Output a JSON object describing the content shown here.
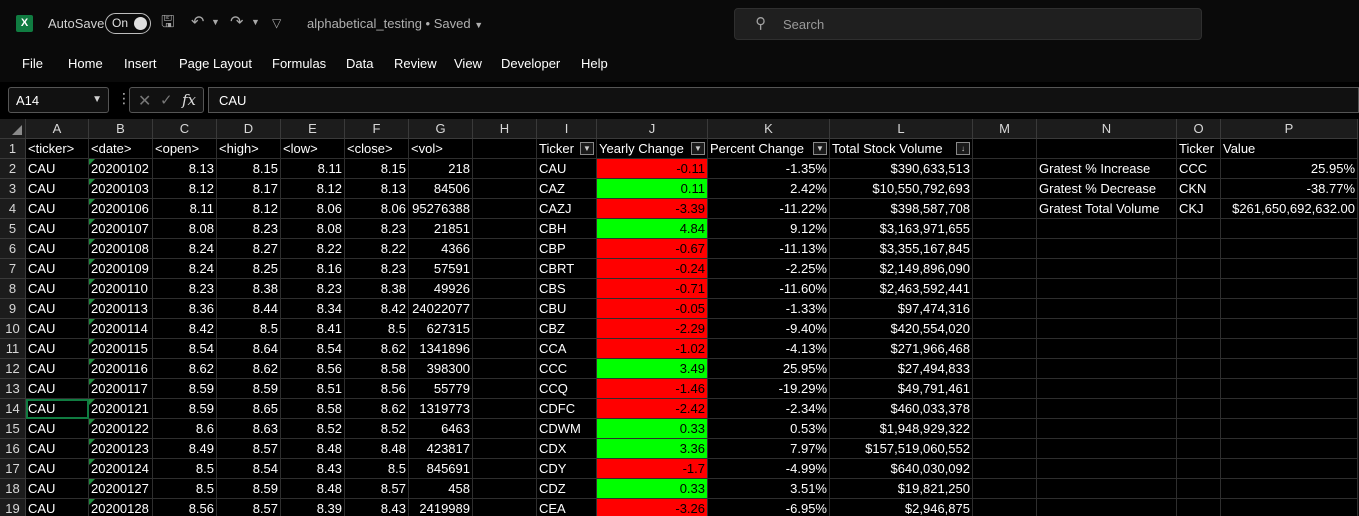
{
  "app": {
    "autosave_label": "AutoSave",
    "autosave_state": "On",
    "filename": "alphabetical_testing",
    "save_status": "• Saved",
    "search_placeholder": "Search"
  },
  "menu": [
    "File",
    "Home",
    "Insert",
    "Page Layout",
    "Formulas",
    "Data",
    "Review",
    "View",
    "Developer",
    "Help"
  ],
  "formula_bar": {
    "name_box": "A14",
    "fx_label": "fx",
    "formula": "CAU"
  },
  "columns": [
    "A",
    "B",
    "C",
    "D",
    "E",
    "F",
    "G",
    "H",
    "I",
    "J",
    "K",
    "L",
    "M",
    "N",
    "O",
    "P"
  ],
  "rows": [
    [
      "<ticker>",
      "<date>",
      "<open>",
      "<high>",
      "<low>",
      "<close>",
      "<vol>",
      "",
      "Ticker",
      "Yearly Change",
      "Percent Change",
      "Total Stock Volume",
      "",
      "",
      "Ticker",
      "Value"
    ],
    [
      "CAU",
      "20200102",
      "8.13",
      "8.15",
      "8.11",
      "8.15",
      "218",
      "",
      "CAU",
      "-0.11",
      "-1.35%",
      "$390,633,513",
      "",
      "Gratest % Increase",
      "CCC",
      "25.95%"
    ],
    [
      "CAU",
      "20200103",
      "8.12",
      "8.17",
      "8.12",
      "8.13",
      "84506",
      "",
      "CAZ",
      "0.11",
      "2.42%",
      "$10,550,792,693",
      "",
      "Gratest % Decrease",
      "CKN",
      "-38.77%"
    ],
    [
      "CAU",
      "20200106",
      "8.11",
      "8.12",
      "8.06",
      "8.06",
      "95276388",
      "",
      "CAZJ",
      "-3.39",
      "-11.22%",
      "$398,587,708",
      "",
      "Gratest Total Volume",
      "CKJ",
      "$261,650,692,632.00"
    ],
    [
      "CAU",
      "20200107",
      "8.08",
      "8.23",
      "8.08",
      "8.23",
      "21851",
      "",
      "CBH",
      "4.84",
      "9.12%",
      "$3,163,971,655",
      "",
      "",
      "",
      ""
    ],
    [
      "CAU",
      "20200108",
      "8.24",
      "8.27",
      "8.22",
      "8.22",
      "4366",
      "",
      "CBP",
      "-0.67",
      "-11.13%",
      "$3,355,167,845",
      "",
      "",
      "",
      ""
    ],
    [
      "CAU",
      "20200109",
      "8.24",
      "8.25",
      "8.16",
      "8.23",
      "57591",
      "",
      "CBRT",
      "-0.24",
      "-2.25%",
      "$2,149,896,090",
      "",
      "",
      "",
      ""
    ],
    [
      "CAU",
      "20200110",
      "8.23",
      "8.38",
      "8.23",
      "8.38",
      "49926",
      "",
      "CBS",
      "-0.71",
      "-11.60%",
      "$2,463,592,441",
      "",
      "",
      "",
      ""
    ],
    [
      "CAU",
      "20200113",
      "8.36",
      "8.44",
      "8.34",
      "8.42",
      "24022077",
      "",
      "CBU",
      "-0.05",
      "-1.33%",
      "$97,474,316",
      "",
      "",
      "",
      ""
    ],
    [
      "CAU",
      "20200114",
      "8.42",
      "8.5",
      "8.41",
      "8.5",
      "627315",
      "",
      "CBZ",
      "-2.29",
      "-9.40%",
      "$420,554,020",
      "",
      "",
      "",
      ""
    ],
    [
      "CAU",
      "20200115",
      "8.54",
      "8.64",
      "8.54",
      "8.62",
      "1341896",
      "",
      "CCA",
      "-1.02",
      "-4.13%",
      "$271,966,468",
      "",
      "",
      "",
      ""
    ],
    [
      "CAU",
      "20200116",
      "8.62",
      "8.62",
      "8.56",
      "8.58",
      "398300",
      "",
      "CCC",
      "3.49",
      "25.95%",
      "$27,494,833",
      "",
      "",
      "",
      ""
    ],
    [
      "CAU",
      "20200117",
      "8.59",
      "8.59",
      "8.51",
      "8.56",
      "55779",
      "",
      "CCQ",
      "-1.46",
      "-19.29%",
      "$49,791,461",
      "",
      "",
      "",
      ""
    ],
    [
      "CAU",
      "20200121",
      "8.59",
      "8.65",
      "8.58",
      "8.62",
      "1319773",
      "",
      "CDFC",
      "-2.42",
      "-2.34%",
      "$460,033,378",
      "",
      "",
      "",
      ""
    ],
    [
      "CAU",
      "20200122",
      "8.6",
      "8.63",
      "8.52",
      "8.52",
      "6463",
      "",
      "CDWM",
      "0.33",
      "0.53%",
      "$1,948,929,322",
      "",
      "",
      "",
      ""
    ],
    [
      "CAU",
      "20200123",
      "8.49",
      "8.57",
      "8.48",
      "8.48",
      "423817",
      "",
      "CDX",
      "3.36",
      "7.97%",
      "$157,519,060,552",
      "",
      "",
      "",
      ""
    ],
    [
      "CAU",
      "20200124",
      "8.5",
      "8.54",
      "8.43",
      "8.5",
      "845691",
      "",
      "CDY",
      "-1.7",
      "-4.99%",
      "$640,030,092",
      "",
      "",
      "",
      ""
    ],
    [
      "CAU",
      "20200127",
      "8.5",
      "8.59",
      "8.48",
      "8.57",
      "458",
      "",
      "CDZ",
      "0.33",
      "3.51%",
      "$19,821,250",
      "",
      "",
      "",
      ""
    ],
    [
      "CAU",
      "20200128",
      "8.56",
      "8.57",
      "8.39",
      "8.43",
      "2419989",
      "",
      "CEA",
      "-3.26",
      "-6.95%",
      "$2,946,875",
      "",
      "",
      "",
      ""
    ]
  ],
  "colors": {
    "accent": "#107c41",
    "negative_fill": "#ff0000",
    "positive_fill": "#00ff00"
  }
}
